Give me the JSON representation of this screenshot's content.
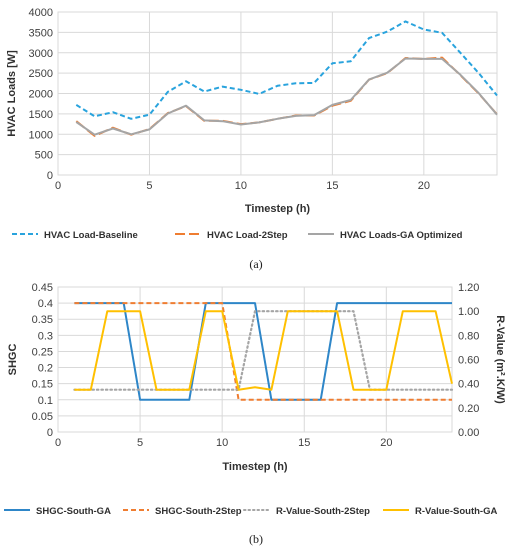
{
  "chart_data": [
    {
      "type": "line",
      "caption": "(a)",
      "xlabel": "Timestep (h)",
      "ylabel": "HVAC Loads [W]",
      "xlim": [
        0,
        24
      ],
      "ylim": [
        0,
        4000
      ],
      "xticks": [
        0,
        5,
        10,
        15,
        20
      ],
      "yticks": [
        0,
        500,
        1000,
        1500,
        2000,
        2500,
        3000,
        3500,
        4000
      ],
      "grid": "both",
      "legend_position": "bottom",
      "x": [
        1,
        2,
        3,
        4,
        5,
        6,
        7,
        8,
        9,
        10,
        11,
        12,
        13,
        14,
        15,
        16,
        17,
        18,
        19,
        20,
        21,
        22,
        23,
        24
      ],
      "series": [
        {
          "name": "HVAC Load-Baseline",
          "color": "#29a3dd",
          "dash": "dashed",
          "values": [
            1720,
            1440,
            1540,
            1380,
            1480,
            2040,
            2300,
            2050,
            2170,
            2090,
            1990,
            2190,
            2250,
            2260,
            2740,
            2790,
            3360,
            3520,
            3770,
            3570,
            3490,
            3000,
            2500,
            1950
          ]
        },
        {
          "name": "HVAC Load-2Step",
          "color": "#ef7d31",
          "dash": "longdash",
          "values": [
            1320,
            960,
            1160,
            990,
            1130,
            1520,
            1690,
            1330,
            1330,
            1250,
            1290,
            1380,
            1460,
            1460,
            1700,
            1820,
            2340,
            2500,
            2870,
            2850,
            2880,
            2450,
            2000,
            1490
          ]
        },
        {
          "name": "HVAC Loads-GA Optimized",
          "color": "#a5a5a5",
          "dash": "solid",
          "values": [
            1300,
            990,
            1140,
            1000,
            1120,
            1510,
            1700,
            1340,
            1320,
            1240,
            1290,
            1380,
            1450,
            1470,
            1720,
            1840,
            2340,
            2510,
            2860,
            2850,
            2850,
            2460,
            2010,
            1480
          ]
        }
      ]
    },
    {
      "type": "line",
      "caption": "(b)",
      "xlabel": "Timestep (h)",
      "ylabel": "SHGC",
      "y2label": "R-Value (m².K/W)",
      "xlim": [
        0,
        24
      ],
      "ylim": [
        0,
        0.45
      ],
      "y2lim": [
        0,
        1.2
      ],
      "xticks": [
        0,
        5,
        10,
        15,
        20
      ],
      "yticks": [
        "0",
        "0.05",
        "0.1",
        "0.15",
        "0.2",
        "0.25",
        "0.3",
        "0.35",
        "0.4",
        "0.45"
      ],
      "y2ticks": [
        "0.00",
        "0.20",
        "0.40",
        "0.60",
        "0.80",
        "1.00",
        "1.20"
      ],
      "grid": "both",
      "legend_position": "bottom",
      "x": [
        1,
        2,
        3,
        4,
        5,
        6,
        7,
        8,
        9,
        10,
        11,
        12,
        13,
        14,
        15,
        16,
        17,
        18,
        19,
        20,
        21,
        22,
        23,
        24
      ],
      "series": [
        {
          "name": "SHGC-South-GA",
          "color": "#2e86c8",
          "dash": "solid",
          "axis": "left",
          "values": [
            0.4,
            0.4,
            0.4,
            0.4,
            0.1,
            0.1,
            0.1,
            0.1,
            0.4,
            0.4,
            0.4,
            0.4,
            0.1,
            0.1,
            0.1,
            0.1,
            0.4,
            0.4,
            0.4,
            0.4,
            0.4,
            0.4,
            0.4,
            0.4
          ]
        },
        {
          "name": "SHGC-South-2Step",
          "color": "#ef7d31",
          "dash": "dashed",
          "axis": "left",
          "values": [
            0.4,
            0.4,
            0.4,
            0.4,
            0.4,
            0.4,
            0.4,
            0.4,
            0.4,
            0.4,
            0.1,
            0.1,
            0.1,
            0.1,
            0.1,
            0.1,
            0.1,
            0.1,
            0.1,
            0.1,
            0.1,
            0.1,
            0.1,
            0.1
          ]
        },
        {
          "name": "R-Value-South-2Step",
          "color": "#a5a5a5",
          "dash": "dotted",
          "axis": "right",
          "values": [
            0.35,
            0.35,
            0.35,
            0.35,
            0.35,
            0.35,
            0.35,
            0.35,
            0.35,
            0.35,
            0.35,
            1.0,
            1.0,
            1.0,
            1.0,
            1.0,
            1.0,
            1.0,
            0.35,
            0.35,
            0.35,
            0.35,
            0.35,
            0.35
          ]
        },
        {
          "name": "R-Value-South-GA",
          "color": "#ffc000",
          "dash": "solid",
          "axis": "right",
          "values": [
            0.35,
            0.35,
            1.0,
            1.0,
            1.0,
            0.35,
            0.35,
            0.35,
            1.0,
            1.0,
            0.35,
            0.37,
            0.35,
            1.0,
            1.0,
            1.0,
            1.0,
            0.35,
            0.35,
            0.35,
            1.0,
            1.0,
            1.0,
            0.4
          ]
        }
      ]
    }
  ]
}
